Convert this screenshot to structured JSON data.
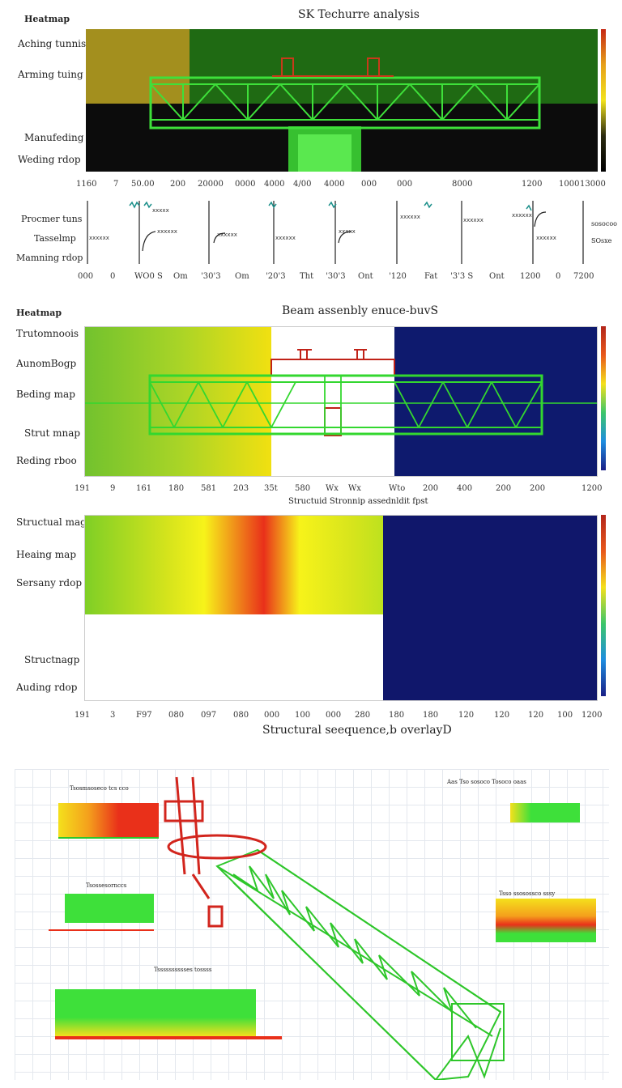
{
  "panel1": {
    "corner_label": "Heatmap",
    "title": "SK Techurre analysis",
    "row_labels": [
      "Aching tunnis",
      "Arming tuing",
      "Manufeding",
      "Weding rdop"
    ],
    "x_ticks": [
      "1160",
      "7",
      "50.00",
      "200",
      "20000",
      "0000",
      "4000",
      "4/00",
      "4000",
      "000",
      "000",
      "8000",
      "1200",
      "1000",
      "13000"
    ],
    "colors": {
      "left": "#a38f1e",
      "right": "#1f6a13",
      "dark": "#0c0c0c",
      "truss": "#3ee03a",
      "accent": "#c83a1a"
    }
  },
  "panel2": {
    "row_labels": [
      "Procmer tuns",
      "Tasselmp",
      "Mamning rdop"
    ],
    "x_ticks": [
      "000",
      "0",
      "WO0 S",
      "Om",
      "'30'3",
      "Om",
      "'20'3",
      "Tht",
      "'30'3",
      "Ont",
      "'120",
      "Fat",
      "'3'3 S",
      "Ont",
      "1200",
      "0",
      "7200"
    ],
    "right_labels": [
      "sosocoo",
      "SOsxe"
    ]
  },
  "panel3": {
    "corner_label": "Heatmap",
    "title": "Beam assenbly enuce-buvS",
    "row_labels": [
      "Trutomnoois",
      "AunomBogp",
      "Beding map",
      "Strut mnap",
      "Reding rboo"
    ],
    "x_ticks": [
      "191",
      "9",
      "161",
      "180",
      "581",
      "203",
      "35t",
      "580",
      "Wx",
      "Wx",
      "Wto",
      "200",
      "400",
      "200",
      "200",
      "1200"
    ],
    "x_label": "Structuid Stronnip assednldit fpst",
    "colors": {
      "left_a": "#72c22e",
      "left_b": "#f1e011",
      "mid": "#ffffff",
      "right": "#0e1a6e",
      "truss": "#33d72f"
    }
  },
  "panel4": {
    "row_labels": [
      "Structual magh",
      "Heaing map",
      "Sersany rdop",
      "Structnagp",
      "Auding rdop"
    ],
    "x_ticks": [
      "191",
      "3",
      "F97",
      "080",
      "097",
      "080",
      "000",
      "100",
      "000",
      "280",
      "180",
      "180",
      "120",
      "120",
      "120",
      "100",
      "1200"
    ],
    "x_label": "Structural seequence,b overlayD",
    "colors": {
      "green": "#7fcf26",
      "yellow": "#f7f31a",
      "hot": "#e9301a",
      "navy": "#10176b"
    }
  },
  "panel5": {
    "mini_titles": [
      "Tsosmsoseco tcs cco",
      "Tsossesornccs",
      "Tsssssssssses tossss",
      "Aas Tso sosoco Tosoco oaas",
      "Tsso ssosossco sssy"
    ],
    "colors": {
      "truss": "#2ec62a",
      "crane": "#d2251d",
      "grid": "#e4e8ee"
    }
  }
}
